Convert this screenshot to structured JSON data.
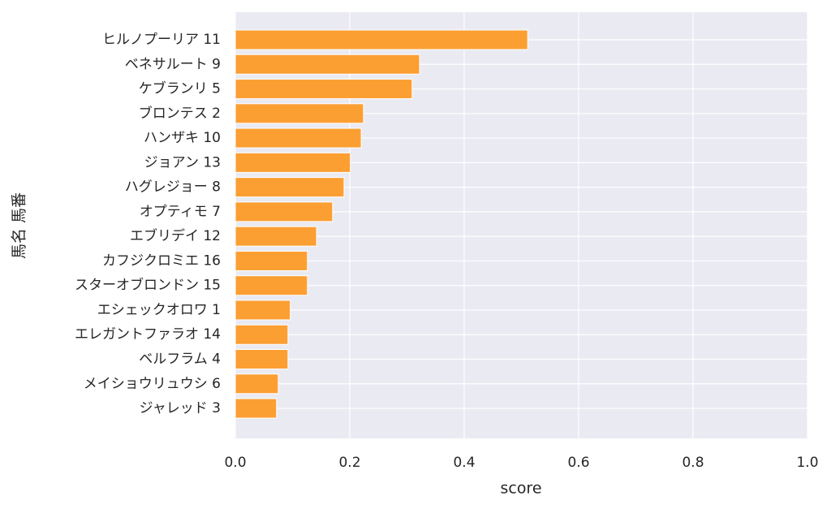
{
  "chart_data": {
    "type": "barh",
    "xlabel": "score",
    "ylabel": "馬名 馬番",
    "categories": [
      "ヒルノプーリア 11",
      "ベネサルート 9",
      "ケブランリ 5",
      "ブロンテス 2",
      "ハンザキ 10",
      "ジョアン 13",
      "ハグレジョー 8",
      "オプティモ 7",
      "エブリデイ 12",
      "カフジクロミエ 16",
      "スターオブロンドン 15",
      "エシェックオロワ 1",
      "エレガントファラオ 14",
      "ベルフラム 4",
      "メイショウリュウシ 6",
      "ジャレッド 3"
    ],
    "values": [
      0.511,
      0.322,
      0.309,
      0.224,
      0.22,
      0.201,
      0.19,
      0.17,
      0.142,
      0.126,
      0.126,
      0.096,
      0.092,
      0.092,
      0.075,
      0.072
    ],
    "color": "#fb9f33",
    "xlim": [
      0,
      1
    ],
    "xticks": [
      {
        "value": 0,
        "label": "0.0"
      },
      0.2,
      0.4,
      0.6,
      0.8,
      {
        "value": 1,
        "label": "1.0"
      }
    ],
    "grid": true
  }
}
